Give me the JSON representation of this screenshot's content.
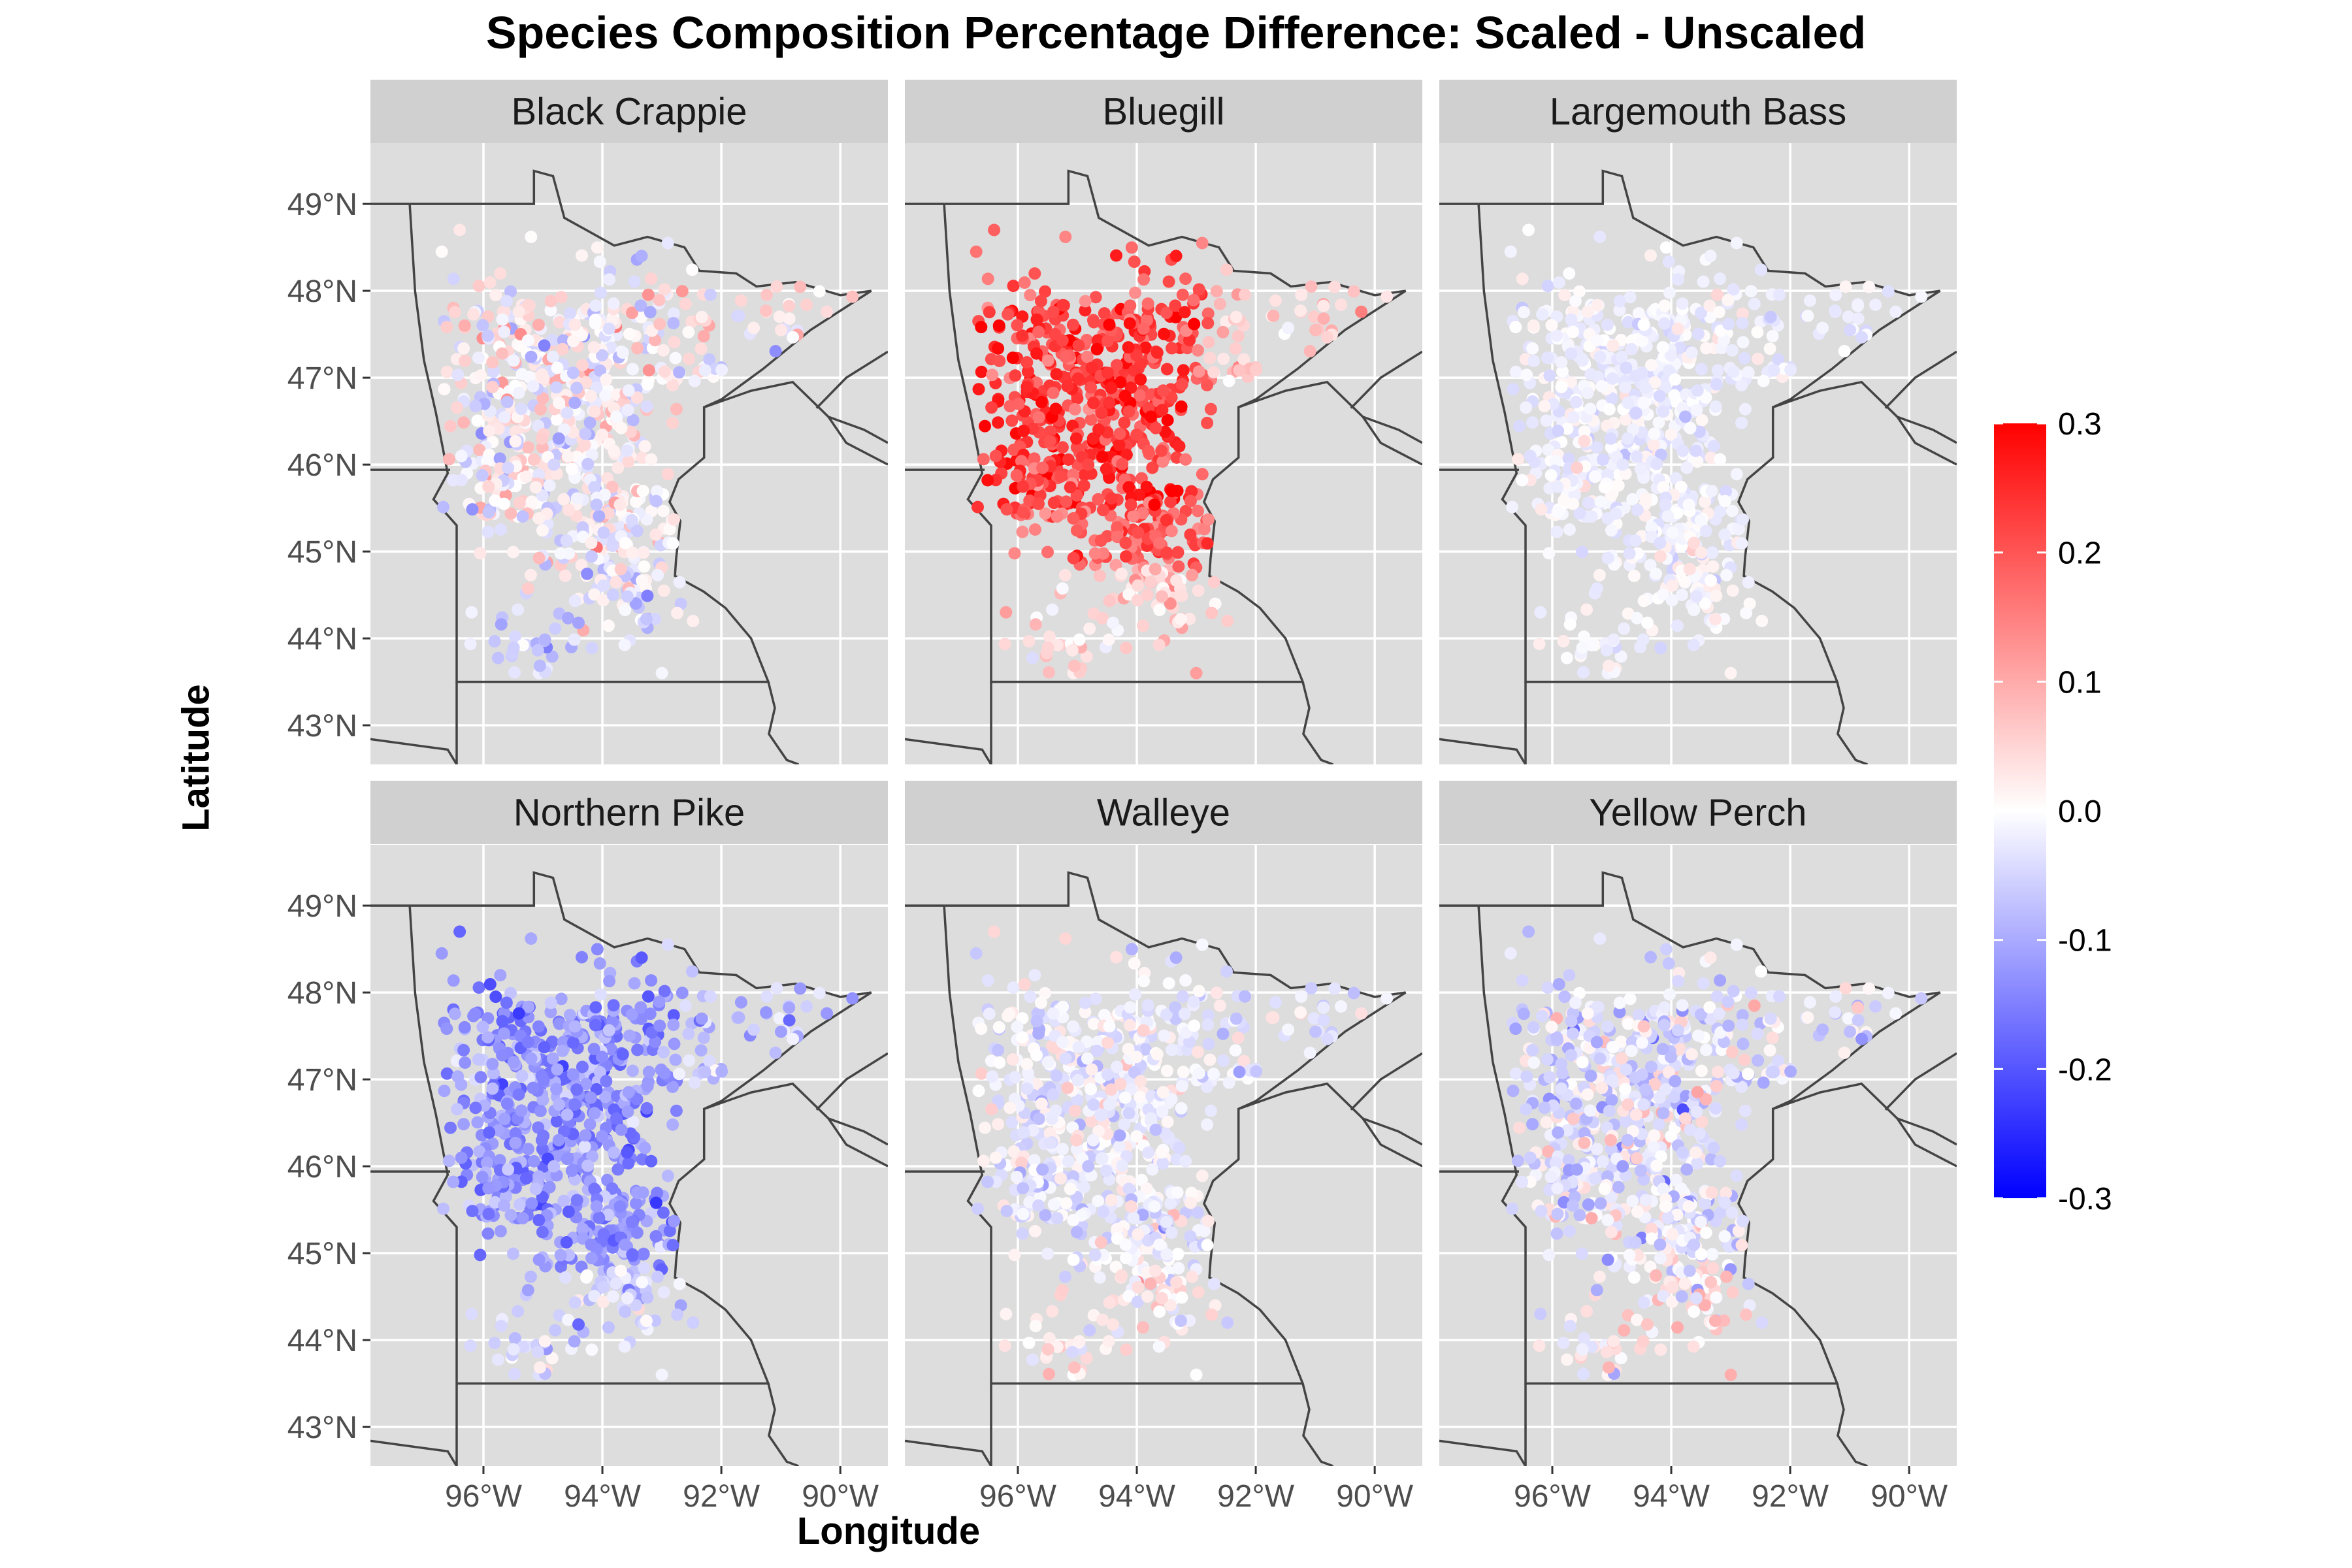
{
  "title": "Species Composition Percentage Difference: Scaled - Unscaled",
  "chart_data": {
    "type": "scatter",
    "subtype": "faceted map of Minnesota lake survey sites colored by difference",
    "xlabel": "Longitude",
    "ylabel": "Latitude",
    "xlim": [
      -97.9,
      -89.2
    ],
    "ylim": [
      42.55,
      49.7
    ],
    "x_ticks": [
      {
        "value": -96,
        "label": "96°W"
      },
      {
        "value": -94,
        "label": "94°W"
      },
      {
        "value": -92,
        "label": "92°W"
      },
      {
        "value": -90,
        "label": "90°W"
      }
    ],
    "y_ticks": [
      {
        "value": 43,
        "label": "43°N"
      },
      {
        "value": 44,
        "label": "44°N"
      },
      {
        "value": 45,
        "label": "45°N"
      },
      {
        "value": 46,
        "label": "46°N"
      },
      {
        "value": 47,
        "label": "47°N"
      },
      {
        "value": 48,
        "label": "48°N"
      },
      {
        "value": 49,
        "label": "49°N"
      }
    ],
    "grid": true,
    "legend": {
      "position": "right",
      "type": "continuous color scale",
      "min": -0.3,
      "max": 0.3,
      "ticks": [
        {
          "value": 0.3,
          "label": "0.3"
        },
        {
          "value": 0.2,
          "label": "0.2"
        },
        {
          "value": 0.1,
          "label": "0.1"
        },
        {
          "value": 0.0,
          "label": "0.0"
        },
        {
          "value": -0.1,
          "label": "-0.1"
        },
        {
          "value": -0.2,
          "label": "-0.2"
        },
        {
          "value": -0.3,
          "label": "-0.3"
        }
      ],
      "colors": {
        "low": "#0000ff",
        "mid": "#ffffff",
        "high": "#ff0000"
      }
    },
    "panels": [
      {
        "name": "Black Crappie",
        "mean": 0.0,
        "spread": 0.05,
        "regional": {
          "north": 0.04,
          "south": -0.03
        }
      },
      {
        "name": "Bluegill",
        "mean": 0.19,
        "spread": 0.04,
        "regional": {
          "core": 0.08,
          "south": -0.14,
          "northeast": -0.12
        }
      },
      {
        "name": "Largemouth Bass",
        "mean": -0.015,
        "spread": 0.02,
        "regional": {
          "south": 0.01
        }
      },
      {
        "name": "Northern Pike",
        "mean": -0.13,
        "spread": 0.04,
        "regional": {
          "south": 0.08,
          "northeast": 0.05
        }
      },
      {
        "name": "Walleye",
        "mean": -0.02,
        "spread": 0.035,
        "regional": {
          "south": 0.04
        }
      },
      {
        "name": "Yellow Perch",
        "mean": -0.03,
        "spread": 0.05,
        "regional": {
          "south": 0.05
        }
      }
    ]
  },
  "colors": {
    "panel_bg": "#dddddd",
    "strip_bg": "#d0d0d0",
    "grid": "#ffffff",
    "border": "#444444"
  }
}
